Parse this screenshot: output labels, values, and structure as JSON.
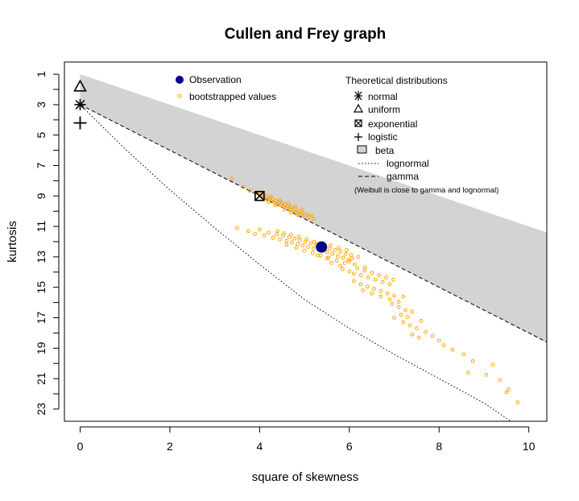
{
  "chart_data": {
    "type": "scatter",
    "title": "Cullen and Frey graph",
    "xlabel": "square of skewness",
    "ylabel": "kurtosis",
    "xlim": [
      -0.35,
      10.4
    ],
    "ylim": [
      23.8,
      0.2
    ],
    "y_axis_reversed": true,
    "x_ticks": [
      0,
      2,
      4,
      6,
      8,
      10
    ],
    "y_ticks": [
      1,
      3,
      5,
      7,
      9,
      11,
      13,
      15,
      17,
      19,
      21,
      23
    ],
    "y_minor_ticks": [
      2,
      4,
      6,
      8,
      10,
      12,
      14,
      16,
      18,
      20,
      22
    ],
    "observation": {
      "x": 5.38,
      "y": 12.35,
      "color": "#00008b"
    },
    "bootstrap_color": "#ffa500",
    "bootstrapped_values": [
      [
        3.38,
        7.85
      ],
      [
        3.63,
        8.4
      ],
      [
        3.78,
        8.65
      ],
      [
        3.92,
        8.8
      ],
      [
        4.0,
        8.75
      ],
      [
        4.05,
        9.0
      ],
      [
        4.1,
        9.1
      ],
      [
        4.15,
        9.0
      ],
      [
        4.18,
        9.25
      ],
      [
        4.22,
        9.15
      ],
      [
        4.26,
        9.35
      ],
      [
        4.3,
        9.2
      ],
      [
        4.33,
        9.45
      ],
      [
        4.36,
        9.3
      ],
      [
        4.4,
        9.55
      ],
      [
        4.43,
        9.4
      ],
      [
        4.47,
        9.6
      ],
      [
        4.5,
        9.45
      ],
      [
        4.53,
        9.7
      ],
      [
        4.57,
        9.55
      ],
      [
        4.6,
        9.8
      ],
      [
        4.63,
        9.65
      ],
      [
        4.67,
        9.9
      ],
      [
        4.7,
        9.75
      ],
      [
        4.74,
        10.0
      ],
      [
        4.78,
        9.85
      ],
      [
        4.82,
        10.1
      ],
      [
        4.86,
        10.0
      ],
      [
        4.9,
        10.2
      ],
      [
        4.95,
        10.1
      ],
      [
        5.0,
        10.3
      ],
      [
        5.05,
        10.2
      ],
      [
        5.1,
        10.4
      ],
      [
        5.15,
        10.3
      ],
      [
        5.2,
        10.5
      ],
      [
        4.2,
        9.4
      ],
      [
        4.35,
        9.6
      ],
      [
        4.55,
        9.9
      ],
      [
        4.7,
        10.1
      ],
      [
        4.85,
        10.25
      ],
      [
        4.25,
        9.05
      ],
      [
        4.45,
        9.3
      ],
      [
        4.65,
        9.5
      ],
      [
        4.8,
        9.7
      ],
      [
        4.95,
        9.9
      ],
      [
        3.5,
        11.1
      ],
      [
        3.75,
        11.3
      ],
      [
        3.9,
        11.5
      ],
      [
        4.0,
        11.2
      ],
      [
        4.1,
        11.6
      ],
      [
        4.2,
        11.4
      ],
      [
        4.3,
        11.75
      ],
      [
        4.38,
        11.5
      ],
      [
        4.45,
        11.85
      ],
      [
        4.52,
        11.6
      ],
      [
        4.6,
        11.95
      ],
      [
        4.66,
        11.7
      ],
      [
        4.72,
        12.05
      ],
      [
        4.78,
        11.8
      ],
      [
        4.85,
        12.15
      ],
      [
        4.9,
        11.9
      ],
      [
        4.96,
        12.25
      ],
      [
        5.02,
        12.0
      ],
      [
        5.08,
        12.35
      ],
      [
        5.14,
        12.1
      ],
      [
        5.2,
        12.45
      ],
      [
        5.26,
        12.2
      ],
      [
        5.32,
        12.55
      ],
      [
        5.44,
        12.4
      ],
      [
        5.5,
        12.7
      ],
      [
        5.56,
        12.45
      ],
      [
        5.62,
        12.8
      ],
      [
        5.68,
        12.55
      ],
      [
        5.74,
        12.95
      ],
      [
        5.8,
        12.65
      ],
      [
        5.86,
        13.05
      ],
      [
        5.92,
        12.8
      ],
      [
        5.98,
        13.2
      ],
      [
        6.04,
        12.9
      ],
      [
        4.4,
        11.3
      ],
      [
        4.55,
        11.45
      ],
      [
        4.7,
        11.55
      ],
      [
        4.88,
        11.7
      ],
      [
        5.05,
        11.85
      ],
      [
        5.22,
        12.0
      ],
      [
        5.4,
        12.1
      ],
      [
        5.58,
        12.25
      ],
      [
        5.76,
        12.4
      ],
      [
        5.94,
        12.55
      ],
      [
        4.6,
        12.2
      ],
      [
        4.82,
        12.4
      ],
      [
        5.0,
        12.6
      ],
      [
        5.18,
        12.75
      ],
      [
        5.36,
        12.9
      ],
      [
        5.54,
        13.05
      ],
      [
        5.72,
        13.25
      ],
      [
        5.9,
        13.4
      ],
      [
        6.06,
        13.1
      ],
      [
        6.12,
        13.5
      ],
      [
        5.85,
        13.8
      ],
      [
        6.0,
        13.95
      ],
      [
        6.1,
        14.1
      ],
      [
        6.18,
        13.75
      ],
      [
        6.26,
        14.2
      ],
      [
        6.34,
        13.9
      ],
      [
        6.42,
        14.35
      ],
      [
        6.5,
        14.05
      ],
      [
        6.58,
        14.5
      ],
      [
        6.66,
        14.2
      ],
      [
        6.74,
        14.65
      ],
      [
        6.82,
        14.35
      ],
      [
        6.9,
        14.8
      ],
      [
        6.98,
        14.5
      ],
      [
        6.1,
        14.6
      ],
      [
        6.25,
        14.8
      ],
      [
        6.4,
        14.95
      ],
      [
        6.55,
        15.1
      ],
      [
        6.7,
        15.25
      ],
      [
        6.85,
        15.4
      ],
      [
        7.0,
        15.55
      ],
      [
        6.3,
        15.2
      ],
      [
        6.5,
        15.4
      ],
      [
        6.7,
        15.6
      ],
      [
        6.9,
        15.8
      ],
      [
        7.1,
        15.95
      ],
      [
        7.2,
        15.6
      ],
      [
        6.95,
        16.1
      ],
      [
        7.1,
        16.3
      ],
      [
        7.25,
        16.5
      ],
      [
        7.15,
        16.8
      ],
      [
        7.3,
        16.95
      ],
      [
        7.4,
        16.6
      ],
      [
        7.0,
        17.0
      ],
      [
        7.2,
        17.3
      ],
      [
        7.35,
        17.5
      ],
      [
        7.5,
        17.7
      ],
      [
        7.6,
        17.2
      ],
      [
        7.7,
        17.95
      ],
      [
        7.85,
        18.2
      ],
      [
        8.0,
        18.5
      ],
      [
        7.4,
        18.1
      ],
      [
        7.55,
        18.3
      ],
      [
        8.1,
        18.8
      ],
      [
        8.3,
        19.1
      ],
      [
        8.55,
        19.4
      ],
      [
        8.75,
        19.85
      ],
      [
        9.2,
        20.1
      ],
      [
        8.65,
        20.6
      ],
      [
        9.05,
        20.75
      ],
      [
        9.35,
        21.1
      ],
      [
        9.55,
        21.7
      ],
      [
        9.5,
        21.9
      ],
      [
        9.75,
        22.55
      ],
      [
        5.6,
        13.4
      ],
      [
        5.8,
        13.6
      ],
      [
        6.0,
        13.3
      ],
      [
        6.2,
        13.0
      ],
      [
        6.35,
        13.7
      ],
      [
        5.3,
        12.9
      ],
      [
        5.5,
        13.1
      ]
    ],
    "theoretical": {
      "normal": {
        "x": 0,
        "y": 3
      },
      "uniform": {
        "x": 0,
        "y": 1.8
      },
      "exponential": {
        "x": 4,
        "y": 9
      },
      "logistic": {
        "x": 0,
        "y": 4.2
      },
      "beta_region": {
        "upper": [
          [
            0,
            1
          ],
          [
            10.4,
            11.4
          ]
        ],
        "lower": [
          [
            0,
            3
          ],
          [
            10.4,
            18.6
          ]
        ],
        "color": "#d3d3d3"
      },
      "lognormal_curve": [
        [
          0,
          3
        ],
        [
          1,
          5.9
        ],
        [
          2,
          8.6
        ],
        [
          3,
          11.1
        ],
        [
          4,
          13.5
        ],
        [
          5,
          15.8
        ],
        [
          6,
          17.7
        ],
        [
          7,
          19.4
        ],
        [
          8,
          21.0
        ],
        [
          9,
          22.6
        ],
        [
          9.6,
          23.8
        ]
      ],
      "gamma_line": [
        [
          0,
          3
        ],
        [
          10.4,
          18.6
        ]
      ]
    }
  },
  "legend_left": {
    "observation_label": "Observation",
    "bootstrap_label": "bootstrapped values"
  },
  "legend_right": {
    "title": "Theoretical distributions",
    "normal": "normal",
    "uniform": "uniform",
    "exponential": "exponential",
    "logistic": "logistic",
    "beta": "beta",
    "lognormal": "lognormal",
    "gamma": "gamma",
    "note": "(Weibull is close to gamma and lognormal)"
  }
}
